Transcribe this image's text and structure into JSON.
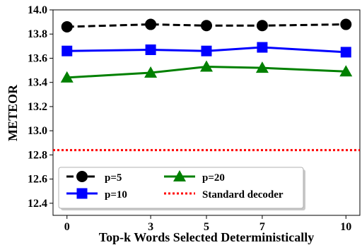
{
  "chart_data": {
    "type": "line",
    "xlabel": "Top-k Words Selected Deterministically",
    "ylabel": "METEOR",
    "x": [
      0,
      3,
      5,
      7,
      10
    ],
    "x_tick_labels": [
      "0",
      "3",
      "5",
      "7",
      "10"
    ],
    "ylim": [
      12.3,
      14.0
    ],
    "y_ticks": [
      12.4,
      12.6,
      12.8,
      13.0,
      13.2,
      13.4,
      13.6,
      13.8,
      14.0
    ],
    "y_tick_labels": [
      "12.4",
      "12.6",
      "12.8",
      "13.0",
      "13.2",
      "13.4",
      "13.6",
      "13.8",
      "14.0"
    ],
    "grid": false,
    "legend_position": "lower-left",
    "series": [
      {
        "name": "p=5",
        "values": [
          13.86,
          13.88,
          13.87,
          13.87,
          13.88
        ],
        "color": "#000000",
        "marker": "circle",
        "line_style": "dashed"
      },
      {
        "name": "p=10",
        "values": [
          13.66,
          13.67,
          13.66,
          13.69,
          13.65
        ],
        "color": "#0000ff",
        "marker": "square",
        "line_style": "solid"
      },
      {
        "name": "p=20",
        "values": [
          13.44,
          13.48,
          13.53,
          13.52,
          13.49
        ],
        "color": "#008000",
        "marker": "triangle",
        "line_style": "solid"
      }
    ],
    "reference_lines": [
      {
        "name": "Standard decoder",
        "value": 12.84,
        "color": "#ff0000",
        "line_style": "dotted"
      }
    ]
  }
}
